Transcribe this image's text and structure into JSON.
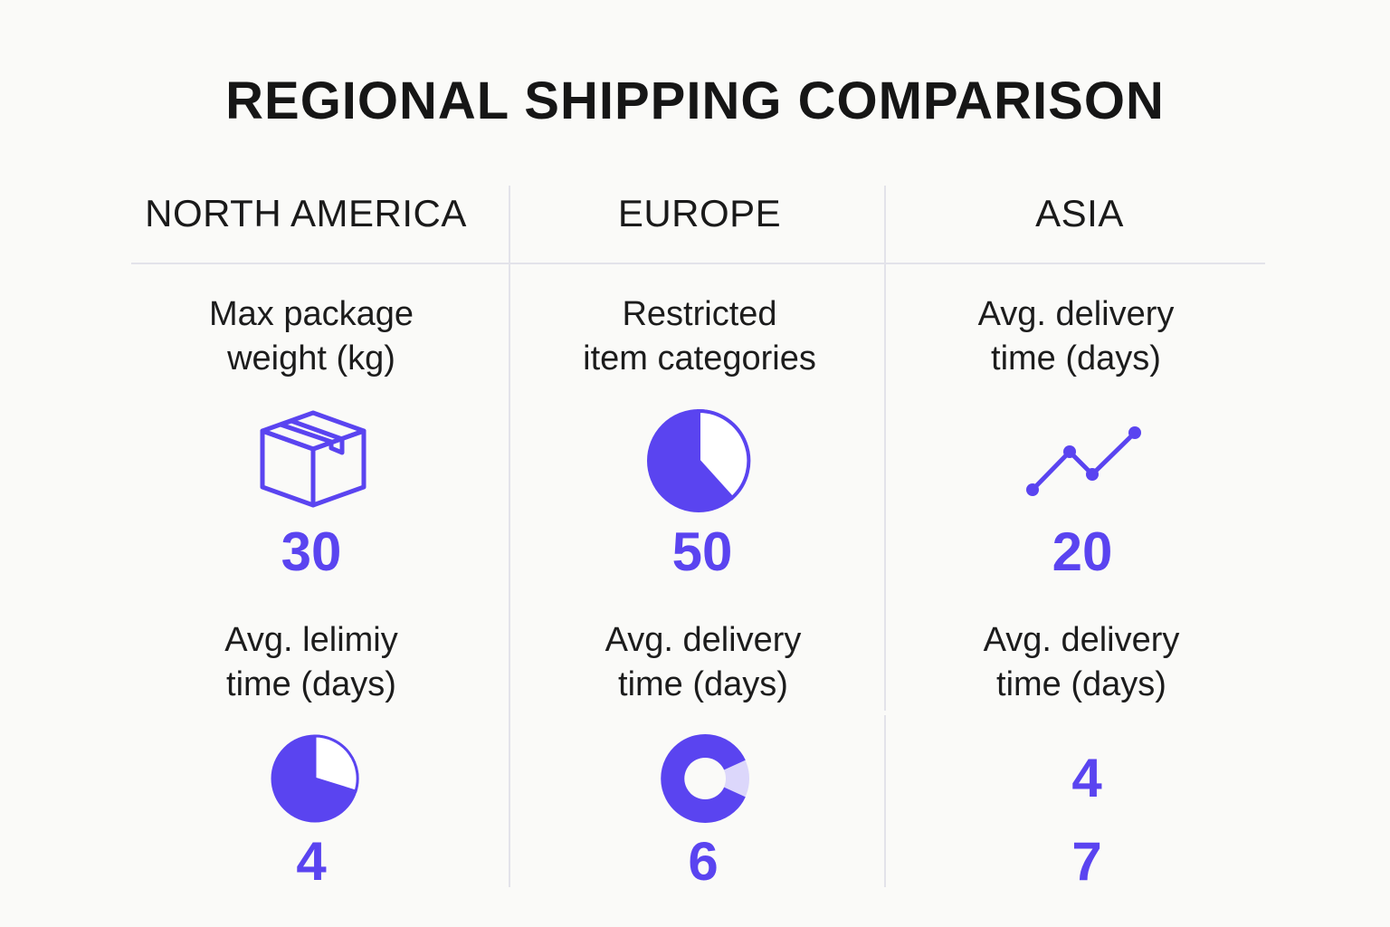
{
  "title": "REGIONAL SHIPPING COMPARISON",
  "accent_color": "#5a44f0",
  "columns": [
    {
      "header": "NORTH AMERICA",
      "cells": [
        {
          "label_line1": "Max package",
          "label_line2": "weight (kg)",
          "icon": "package-box-icon",
          "value": "30"
        },
        {
          "label_line1": "Avg. lelimiy",
          "label_line2": "time (days)",
          "icon": "pie-chart-icon",
          "value": "4"
        }
      ]
    },
    {
      "header": "EUROPE",
      "cells": [
        {
          "label_line1": "Restricted",
          "label_line2": "item categories",
          "icon": "pie-chart-icon",
          "value": "50"
        },
        {
          "label_line1": "Avg. delivery",
          "label_line2": "time (days)",
          "icon": "donut-chart-icon",
          "value": "6"
        }
      ]
    },
    {
      "header": "ASIA",
      "cells": [
        {
          "label_line1": "Avg. delivery",
          "label_line2": "time (days)",
          "icon": "line-chart-icon",
          "value": "20"
        },
        {
          "label_line1": "Avg. delivery",
          "label_line2": "time (days)",
          "value": "4",
          "value2": "7"
        }
      ]
    }
  ]
}
